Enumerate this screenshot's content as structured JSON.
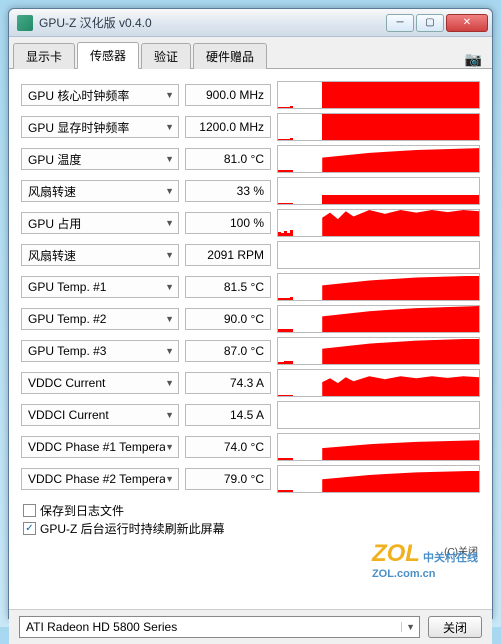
{
  "window": {
    "title": "GPU-Z 汉化版 v0.4.0"
  },
  "tabs": [
    {
      "label": "显示卡",
      "active": false
    },
    {
      "label": "传感器",
      "active": true
    },
    {
      "label": "验证",
      "active": false
    },
    {
      "label": "硬件赠品",
      "active": false
    }
  ],
  "sensors": [
    {
      "label": "GPU 核心时钟频率",
      "value": "900.0 MHz",
      "graph": {
        "startPct": 0,
        "heights": [
          5,
          5,
          5,
          5,
          6
        ],
        "mainStart": 22,
        "mainHeight": 100
      }
    },
    {
      "label": "GPU 显存时钟频率",
      "value": "1200.0 MHz",
      "graph": {
        "startPct": 0,
        "heights": [
          5,
          5,
          5,
          5,
          6
        ],
        "mainStart": 22,
        "mainHeight": 100
      }
    },
    {
      "label": "GPU 温度",
      "value": "81.0 °C",
      "graph": {
        "startPct": 0,
        "heights": [
          8,
          8,
          8,
          9,
          9
        ],
        "mainStart": 22,
        "mainHeight": 92,
        "slope": true
      }
    },
    {
      "label": "风扇转速",
      "value": "33 %",
      "graph": {
        "startPct": 0,
        "heights": [
          2,
          2,
          2,
          2,
          2
        ],
        "mainStart": 22,
        "mainHeight": 33
      }
    },
    {
      "label": "GPU 占用",
      "value": "100 %",
      "graph": {
        "startPct": 0,
        "heights": [
          15,
          10,
          18,
          12,
          22
        ],
        "mainStart": 22,
        "mainHeight": 100,
        "jagged": true
      }
    },
    {
      "label": "风扇转速",
      "value": "2091 RPM",
      "graph": {
        "empty": true
      }
    },
    {
      "label": "GPU Temp. #1",
      "value": "81.5 °C",
      "graph": {
        "startPct": 0,
        "heights": [
          9,
          9,
          9,
          9,
          10
        ],
        "mainStart": 22,
        "mainHeight": 94,
        "slope": true
      }
    },
    {
      "label": "GPU Temp. #2",
      "value": "90.0 °C",
      "graph": {
        "startPct": 0,
        "heights": [
          10,
          10,
          10,
          11,
          11
        ],
        "mainStart": 22,
        "mainHeight": 100,
        "slope": true
      }
    },
    {
      "label": "GPU Temp. #3",
      "value": "87.0 °C",
      "graph": {
        "startPct": 0,
        "heights": [
          9,
          9,
          10,
          10,
          10
        ],
        "mainStart": 22,
        "mainHeight": 98,
        "slope": true
      }
    },
    {
      "label": "VDDC Current",
      "value": "74.3 A",
      "graph": {
        "startPct": 0,
        "heights": [
          2,
          2,
          2,
          2,
          2
        ],
        "mainStart": 22,
        "mainHeight": 76,
        "jagged": true
      }
    },
    {
      "label": "VDDCI Current",
      "value": "14.5 A",
      "graph": {
        "empty": true
      }
    },
    {
      "label": "VDDC Phase #1 Temperat",
      "value": "74.0 °C",
      "graph": {
        "startPct": 0,
        "heights": [
          7,
          7,
          7,
          8,
          8
        ],
        "mainStart": 22,
        "mainHeight": 76,
        "slope": true
      }
    },
    {
      "label": "VDDC Phase #2 Temperat",
      "value": "79.0 °C",
      "graph": {
        "startPct": 0,
        "heights": [
          7,
          8,
          8,
          8,
          9
        ],
        "mainStart": 22,
        "mainHeight": 82,
        "slope": true
      }
    }
  ],
  "checkboxes": {
    "save_log": {
      "checked": false,
      "label": "保存到日志文件"
    },
    "refresh_bg": {
      "checked": true,
      "label": "GPU-Z 后台运行时持续刷新此屏幕"
    }
  },
  "footer": {
    "device": "ATI Radeon HD 5800 Series",
    "close": "关闭"
  },
  "copyright": "(C)关闭",
  "watermark": {
    "main": "ZOL",
    "sub": "中关村在线",
    "url": "ZOL.com.cn"
  },
  "colors": {
    "graph_fill": "#ff0000",
    "border": "#bbbbbb",
    "bg": "#ffffff"
  }
}
